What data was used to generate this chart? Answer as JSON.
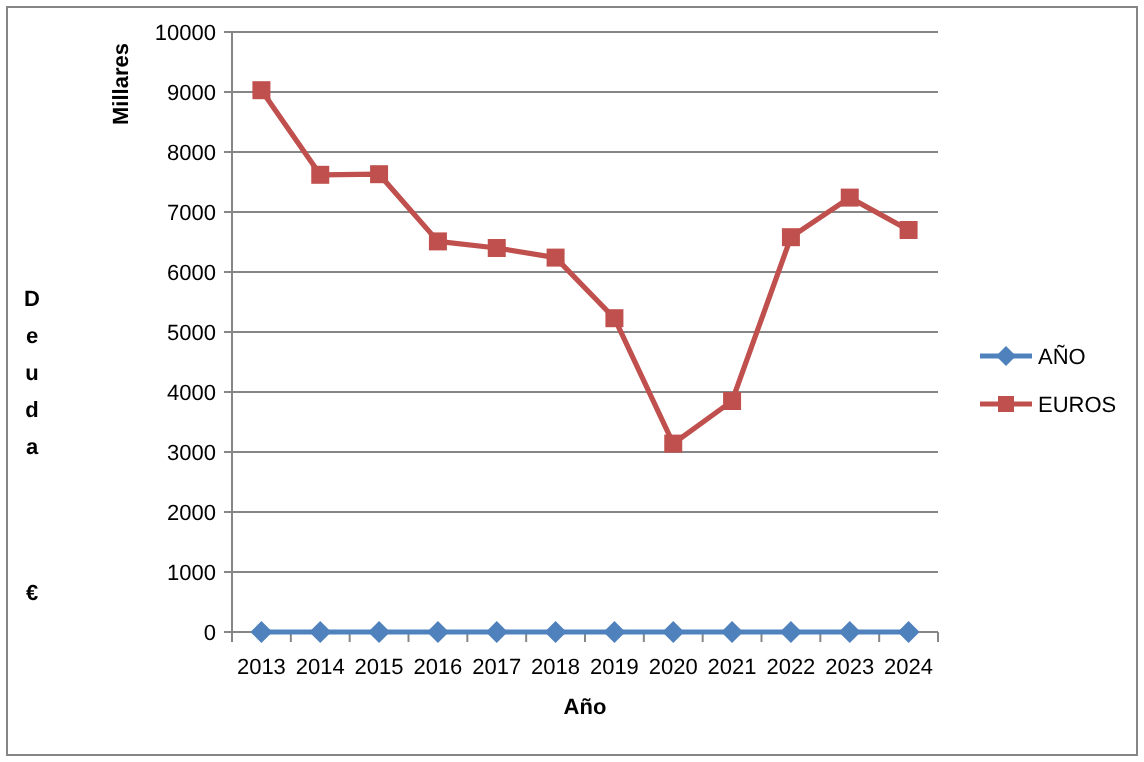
{
  "chart_data": {
    "type": "line",
    "categories": [
      "2013",
      "2014",
      "2015",
      "2016",
      "2017",
      "2018",
      "2019",
      "2020",
      "2021",
      "2022",
      "2023",
      "2024"
    ],
    "series": [
      {
        "name": "AÑO",
        "color": "#4f81bd",
        "marker": "diamond",
        "values": [
          0,
          0,
          0,
          0,
          0,
          0,
          0,
          0,
          0,
          0,
          0,
          0
        ]
      },
      {
        "name": "EUROS",
        "color": "#c0504d",
        "marker": "square",
        "values": [
          9030,
          7620,
          7630,
          6510,
          6400,
          6240,
          5230,
          3140,
          3850,
          6580,
          7240,
          6700
        ]
      }
    ],
    "xlabel": "Año",
    "ylabel": "Millares",
    "annotations": [
      "Deuda €"
    ],
    "ylim": [
      0,
      10000
    ],
    "yticks": [
      0,
      1000,
      2000,
      3000,
      4000,
      5000,
      6000,
      7000,
      8000,
      9000,
      10000
    ],
    "grid": "y",
    "legend": "right",
    "line_style": "solid"
  }
}
